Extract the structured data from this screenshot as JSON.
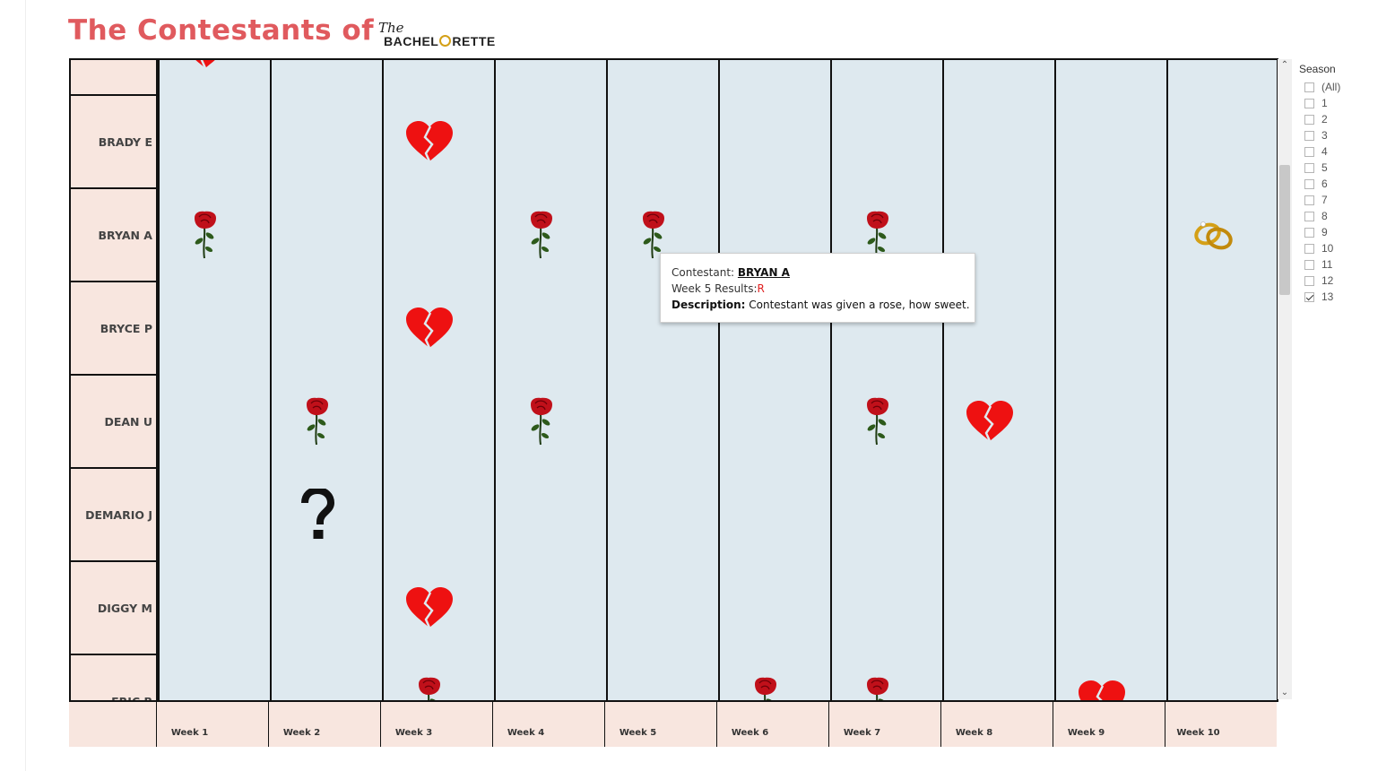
{
  "header": {
    "title": "The Contestants of",
    "logo_the": "The",
    "logo_word_left": "BACHEL",
    "logo_word_right": "RETTE"
  },
  "colors": {
    "title": "#e05a5e",
    "cell_bg": "#dee9ef",
    "name_bg": "#f8e6df",
    "heart": "#ee1111",
    "rose": "#c0101a"
  },
  "contestants": [
    "BRADY E",
    "BRYAN A",
    "BRYCE P",
    "DEAN U",
    "DEMARIO J",
    "DIGGY M",
    "ERIC B"
  ],
  "weeks": [
    "Week 1",
    "Week 2",
    "Week 3",
    "Week 4",
    "Week 5",
    "Week 6",
    "Week 7",
    "Week 8",
    "Week 9",
    "Week 10"
  ],
  "results": [
    {
      "row": -1,
      "week": 1,
      "icon": "heart-icon"
    },
    {
      "row": 0,
      "week": 3,
      "icon": "heart-icon"
    },
    {
      "row": 1,
      "week": 1,
      "icon": "rose-icon"
    },
    {
      "row": 1,
      "week": 4,
      "icon": "rose-icon"
    },
    {
      "row": 1,
      "week": 5,
      "icon": "rose-icon"
    },
    {
      "row": 1,
      "week": 7,
      "icon": "rose-icon"
    },
    {
      "row": 1,
      "week": 10,
      "icon": "rings-icon"
    },
    {
      "row": 2,
      "week": 3,
      "icon": "heart-icon"
    },
    {
      "row": 3,
      "week": 2,
      "icon": "rose-icon"
    },
    {
      "row": 3,
      "week": 4,
      "icon": "rose-icon"
    },
    {
      "row": 3,
      "week": 7,
      "icon": "rose-icon"
    },
    {
      "row": 3,
      "week": 8,
      "icon": "heart-icon"
    },
    {
      "row": 4,
      "week": 2,
      "icon": "question-icon"
    },
    {
      "row": 5,
      "week": 3,
      "icon": "heart-icon"
    },
    {
      "row": 6,
      "week": 3,
      "icon": "rose-icon"
    },
    {
      "row": 6,
      "week": 6,
      "icon": "rose-icon"
    },
    {
      "row": 6,
      "week": 7,
      "icon": "rose-icon"
    },
    {
      "row": 6,
      "week": 9,
      "icon": "heart-icon"
    }
  ],
  "filter": {
    "title": "Season",
    "options": [
      "(All)",
      "1",
      "2",
      "3",
      "4",
      "5",
      "6",
      "7",
      "8",
      "9",
      "10",
      "11",
      "12",
      "13"
    ],
    "checked": [
      "13"
    ]
  },
  "tooltip": {
    "contestant_label": "Contestant: ",
    "contestant": "BRYAN A",
    "results_label": "Week 5 Results:",
    "result": "R",
    "description_label": "Description:",
    "description": " Contestant was given a rose, how sweet."
  }
}
